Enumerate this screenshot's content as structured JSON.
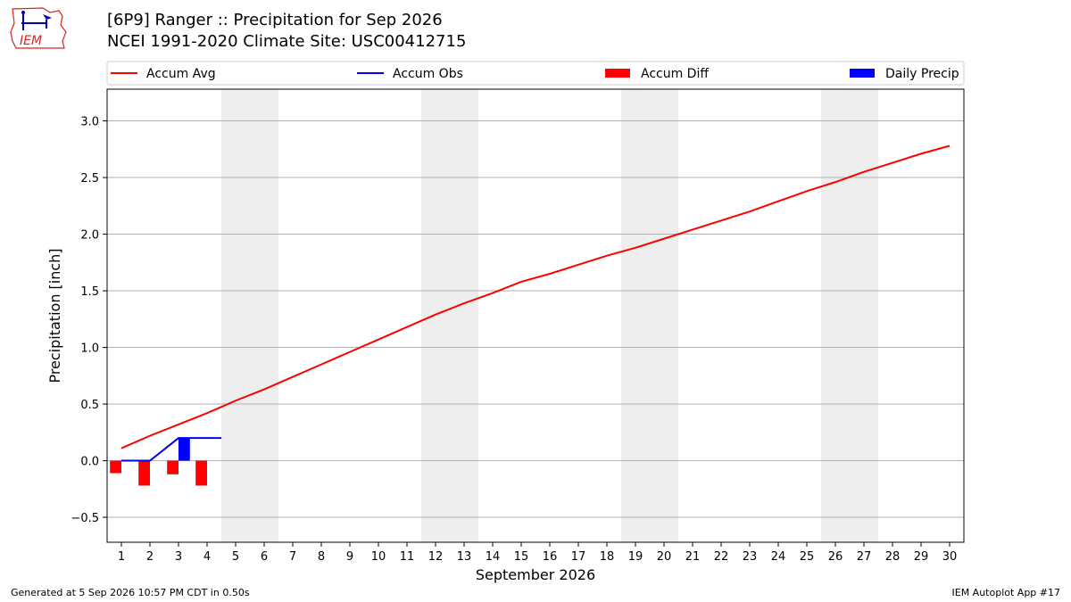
{
  "header": {
    "title_line1": "[6P9] Ranger :: Precipitation for Sep 2026",
    "title_line2": "NCEI 1991-2020 Climate Site: USC00412715",
    "logo_text": "IEM"
  },
  "footer": {
    "left": "Generated at 5 Sep 2026 10:57 PM CDT in 0.50s",
    "right": "IEM Autoplot App #17"
  },
  "colors": {
    "accum_avg": "#ff0000",
    "accum_obs": "#0000ff",
    "accum_diff": "#ff0000",
    "daily_precip": "#0000ff",
    "weekend_band": "#eeeeee",
    "grid": "#b0b0b0"
  },
  "chart_data": {
    "type": "line",
    "xlabel": "September 2026",
    "ylabel": "Precipitation [inch]",
    "xlim": [
      0.5,
      30.5
    ],
    "ylim": [
      -0.72,
      3.28
    ],
    "x_ticks": [
      1,
      2,
      3,
      4,
      5,
      6,
      7,
      8,
      9,
      10,
      11,
      12,
      13,
      14,
      15,
      16,
      17,
      18,
      19,
      20,
      21,
      22,
      23,
      24,
      25,
      26,
      27,
      28,
      29,
      30
    ],
    "y_ticks": [
      -0.5,
      0.0,
      0.5,
      1.0,
      1.5,
      2.0,
      2.5,
      3.0
    ],
    "y_tick_labels": [
      "−0.5",
      "0.0",
      "0.5",
      "1.0",
      "1.5",
      "2.0",
      "2.5",
      "3.0"
    ],
    "grid": "horizontal",
    "legend_position": "top (above plot, single row)",
    "weekend_bands": [
      [
        4.5,
        6.5
      ],
      [
        11.5,
        13.5
      ],
      [
        18.5,
        20.5
      ],
      [
        25.5,
        27.5
      ]
    ],
    "legend": [
      "Accum Avg",
      "Accum Obs",
      "Accum Diff",
      "Daily Precip"
    ],
    "series": [
      {
        "name": "Accum Avg",
        "kind": "line",
        "x": [
          1,
          2,
          3,
          4,
          5,
          6,
          7,
          8,
          9,
          10,
          11,
          12,
          13,
          14,
          15,
          16,
          17,
          18,
          19,
          20,
          21,
          22,
          23,
          24,
          25,
          26,
          27,
          28,
          29,
          30
        ],
        "values": [
          0.11,
          0.22,
          0.32,
          0.42,
          0.53,
          0.63,
          0.74,
          0.85,
          0.96,
          1.07,
          1.18,
          1.29,
          1.39,
          1.48,
          1.58,
          1.65,
          1.73,
          1.81,
          1.88,
          1.96,
          2.04,
          2.12,
          2.2,
          2.29,
          2.38,
          2.46,
          2.55,
          2.63,
          2.71,
          2.78
        ]
      },
      {
        "name": "Accum Obs",
        "kind": "line",
        "x": [
          1,
          2,
          3,
          4
        ],
        "values": [
          0.0,
          0.0,
          0.2,
          0.2
        ]
      },
      {
        "name": "Accum Diff",
        "kind": "bar",
        "x": [
          1,
          2,
          3,
          4
        ],
        "values": [
          -0.11,
          -0.22,
          -0.12,
          -0.22
        ]
      },
      {
        "name": "Daily Precip",
        "kind": "bar",
        "x": [
          1,
          2,
          3,
          4
        ],
        "values": [
          0.0,
          0.0,
          0.2,
          0.0
        ]
      }
    ]
  }
}
